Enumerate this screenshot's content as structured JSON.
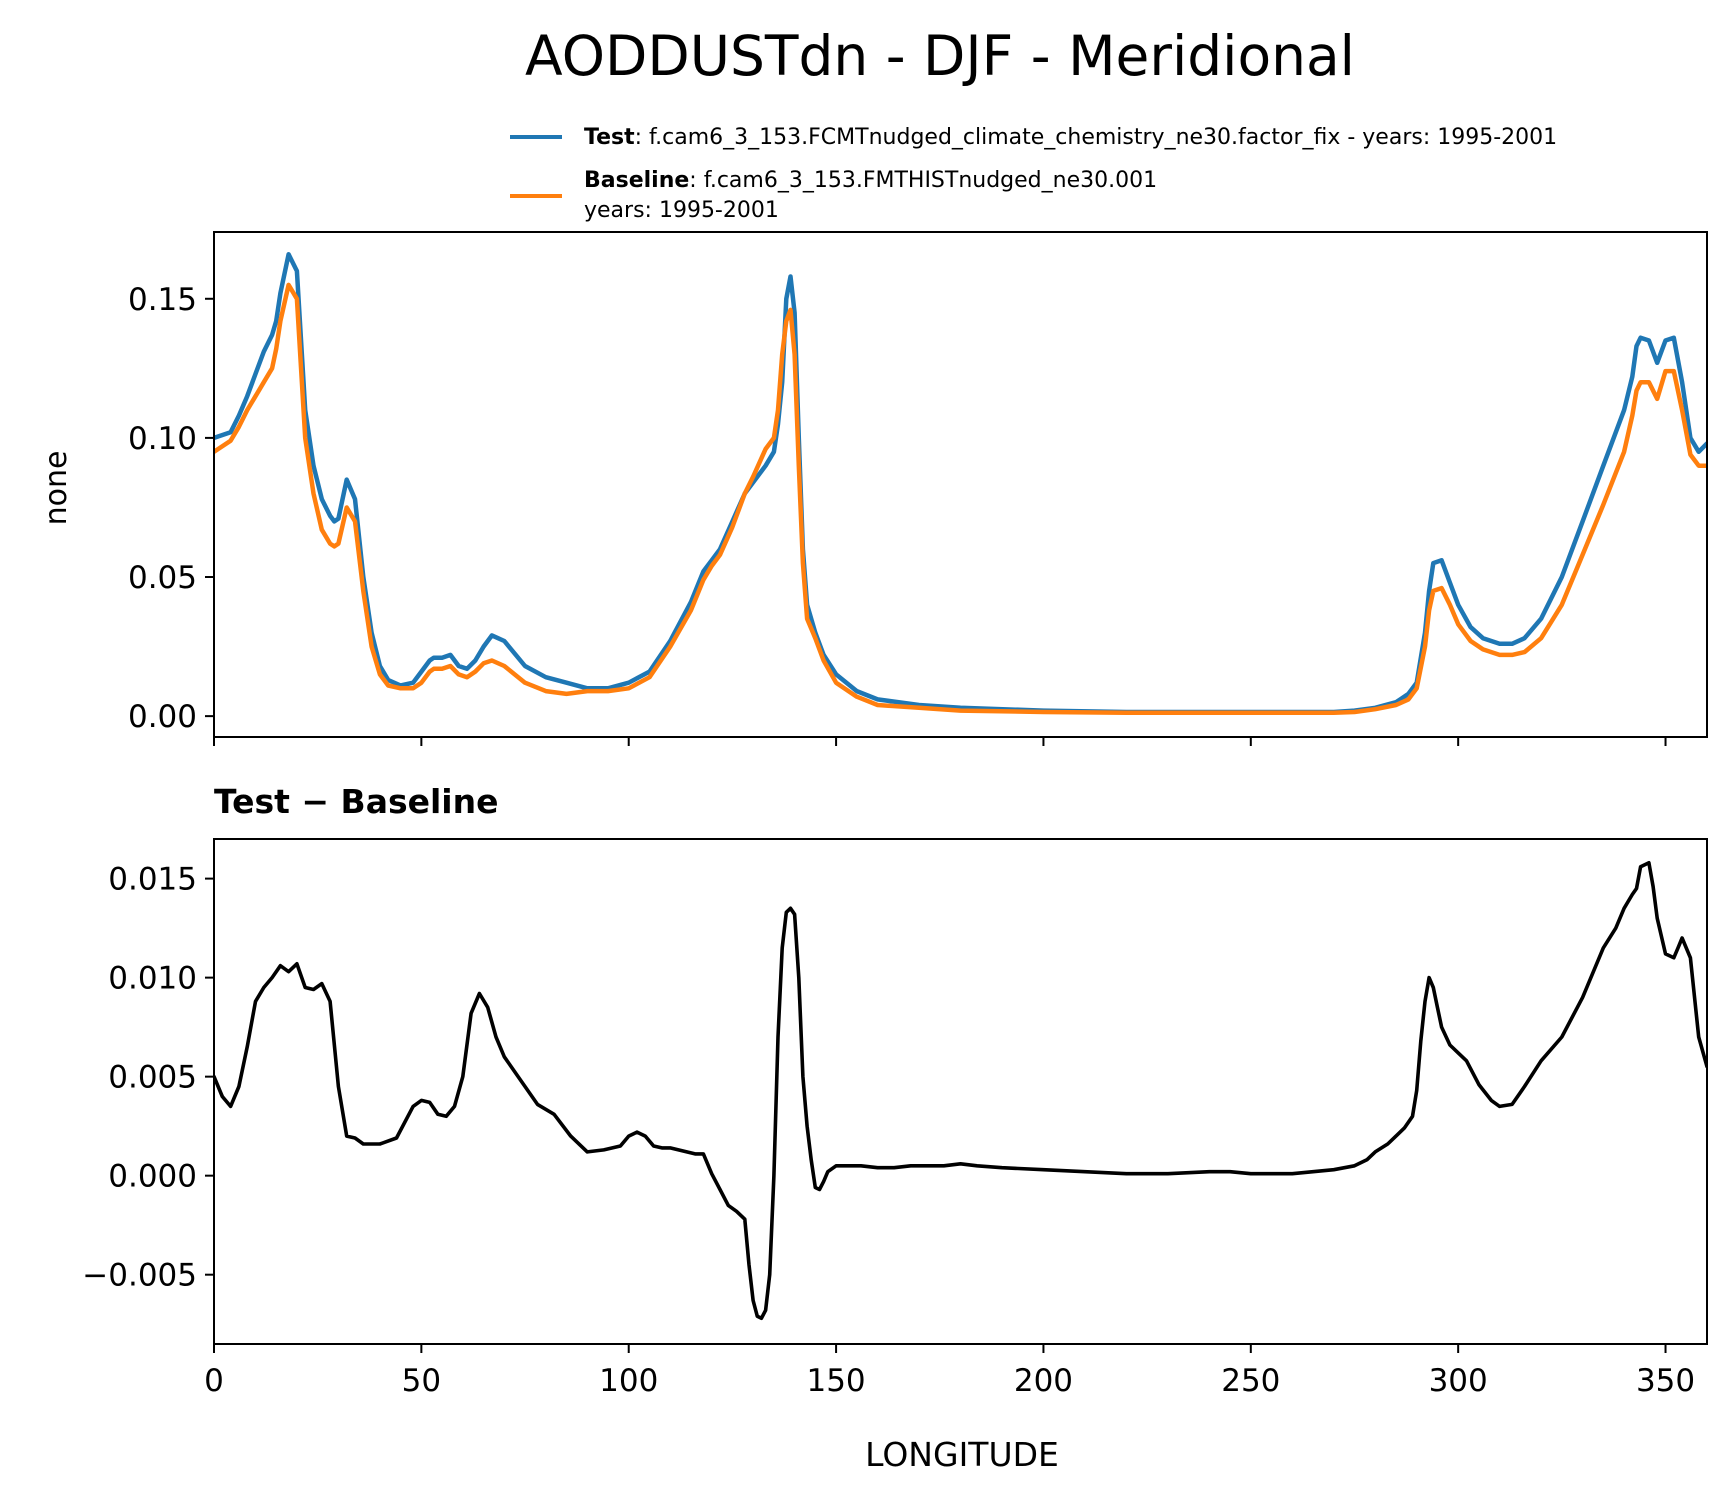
{
  "colors": {
    "test": "#1f77b4",
    "baseline": "#ff7f0e",
    "diff": "#000000",
    "axes": "#000000"
  },
  "chart_data": [
    {
      "type": "line",
      "title": "AODDUSTdn - DJF - Meridional",
      "xlabel": "",
      "ylabel": "none",
      "xlim": [
        0,
        360
      ],
      "ylim": [
        -0.0075,
        0.174
      ],
      "yticks": [
        0.0,
        0.05,
        0.1,
        0.15
      ],
      "ytick_labels": [
        "0.00",
        "0.05",
        "0.10",
        "0.15"
      ],
      "xticks": [
        0,
        50,
        100,
        150,
        200,
        250,
        300,
        350
      ],
      "legend": {
        "placement": "top-right",
        "entries": [
          {
            "bold": "Test",
            "text": ": f.cam6_3_153.FCMTnudged_climate_chemistry_ne30.factor_fix - years: 1995-2001",
            "line2": ""
          },
          {
            "bold": "Baseline",
            "text": ": f.cam6_3_153.FMTHISTnudged_ne30.001",
            "line2": "years: 1995-2001"
          }
        ]
      },
      "series": [
        {
          "name": "Test",
          "x": [
            0,
            4,
            6,
            8,
            10,
            12,
            14,
            15,
            16,
            18,
            20,
            22,
            24,
            26,
            28,
            29,
            30,
            32,
            34,
            36,
            38,
            40,
            42,
            45,
            48,
            50,
            52,
            53,
            55,
            57,
            59,
            61,
            63,
            65,
            67,
            70,
            75,
            80,
            85,
            90,
            95,
            100,
            105,
            110,
            115,
            118,
            120,
            122,
            125,
            128,
            130,
            133,
            135,
            136,
            137,
            138,
            139,
            140,
            141,
            142,
            143,
            145,
            147,
            150,
            155,
            160,
            170,
            180,
            200,
            220,
            240,
            245,
            250,
            260,
            270,
            275,
            280,
            285,
            288,
            290,
            292,
            293,
            294,
            296,
            298,
            300,
            303,
            306,
            310,
            313,
            316,
            320,
            325,
            330,
            335,
            340,
            342,
            343,
            344,
            346,
            348,
            350,
            352,
            354,
            356,
            358,
            360
          ],
          "values": [
            0.1,
            0.102,
            0.108,
            0.115,
            0.123,
            0.131,
            0.137,
            0.142,
            0.152,
            0.166,
            0.16,
            0.11,
            0.09,
            0.078,
            0.072,
            0.07,
            0.071,
            0.085,
            0.078,
            0.05,
            0.03,
            0.018,
            0.013,
            0.011,
            0.012,
            0.016,
            0.02,
            0.021,
            0.021,
            0.022,
            0.018,
            0.017,
            0.02,
            0.025,
            0.029,
            0.027,
            0.018,
            0.014,
            0.012,
            0.01,
            0.01,
            0.012,
            0.016,
            0.027,
            0.041,
            0.052,
            0.056,
            0.06,
            0.07,
            0.08,
            0.084,
            0.09,
            0.095,
            0.105,
            0.12,
            0.15,
            0.158,
            0.145,
            0.1,
            0.06,
            0.04,
            0.03,
            0.022,
            0.015,
            0.009,
            0.006,
            0.004,
            0.003,
            0.002,
            0.0015,
            0.0015,
            0.0015,
            0.0015,
            0.0015,
            0.0015,
            0.002,
            0.003,
            0.005,
            0.008,
            0.012,
            0.03,
            0.045,
            0.055,
            0.056,
            0.048,
            0.04,
            0.032,
            0.028,
            0.026,
            0.026,
            0.028,
            0.035,
            0.05,
            0.07,
            0.09,
            0.11,
            0.122,
            0.133,
            0.136,
            0.135,
            0.127,
            0.135,
            0.136,
            0.12,
            0.1,
            0.095,
            0.098
          ]
        },
        {
          "name": "Baseline",
          "x": [
            0,
            4,
            6,
            8,
            10,
            12,
            14,
            15,
            16,
            18,
            20,
            22,
            24,
            26,
            28,
            29,
            30,
            32,
            34,
            36,
            38,
            40,
            42,
            45,
            48,
            50,
            52,
            53,
            55,
            57,
            59,
            61,
            63,
            65,
            67,
            70,
            75,
            80,
            85,
            90,
            95,
            100,
            105,
            110,
            115,
            118,
            120,
            122,
            125,
            128,
            130,
            133,
            135,
            136,
            137,
            138,
            139,
            140,
            141,
            142,
            143,
            145,
            147,
            150,
            155,
            160,
            170,
            180,
            200,
            220,
            240,
            245,
            250,
            260,
            270,
            275,
            280,
            285,
            288,
            290,
            292,
            293,
            294,
            296,
            298,
            300,
            303,
            306,
            310,
            313,
            316,
            320,
            325,
            330,
            335,
            340,
            342,
            343,
            344,
            346,
            348,
            350,
            352,
            354,
            356,
            358,
            360
          ],
          "values": [
            0.095,
            0.099,
            0.104,
            0.11,
            0.115,
            0.12,
            0.125,
            0.132,
            0.142,
            0.155,
            0.15,
            0.1,
            0.08,
            0.067,
            0.062,
            0.061,
            0.062,
            0.075,
            0.07,
            0.045,
            0.025,
            0.015,
            0.011,
            0.01,
            0.01,
            0.012,
            0.016,
            0.017,
            0.017,
            0.018,
            0.015,
            0.014,
            0.016,
            0.019,
            0.02,
            0.018,
            0.012,
            0.009,
            0.008,
            0.009,
            0.009,
            0.01,
            0.014,
            0.025,
            0.038,
            0.049,
            0.054,
            0.058,
            0.068,
            0.08,
            0.086,
            0.096,
            0.1,
            0.11,
            0.13,
            0.142,
            0.146,
            0.13,
            0.09,
            0.055,
            0.035,
            0.028,
            0.02,
            0.012,
            0.007,
            0.004,
            0.003,
            0.002,
            0.0015,
            0.0012,
            0.0012,
            0.0012,
            0.0012,
            0.0012,
            0.0012,
            0.0015,
            0.0025,
            0.004,
            0.006,
            0.01,
            0.025,
            0.038,
            0.045,
            0.046,
            0.04,
            0.033,
            0.027,
            0.024,
            0.022,
            0.022,
            0.023,
            0.028,
            0.04,
            0.058,
            0.076,
            0.095,
            0.108,
            0.117,
            0.12,
            0.12,
            0.114,
            0.124,
            0.124,
            0.11,
            0.094,
            0.09,
            0.09
          ]
        }
      ]
    },
    {
      "type": "line",
      "title": "Test − Baseline",
      "xlabel": "LONGITUDE",
      "ylabel": "",
      "xlim": [
        0,
        360
      ],
      "ylim": [
        -0.0085,
        0.017
      ],
      "yticks": [
        -0.005,
        0.0,
        0.005,
        0.01,
        0.015
      ],
      "ytick_labels": [
        "−0.005",
        "0.000",
        "0.005",
        "0.010",
        "0.015"
      ],
      "xticks": [
        0,
        50,
        100,
        150,
        200,
        250,
        300,
        350
      ],
      "xtick_labels": [
        "0",
        "50",
        "100",
        "150",
        "200",
        "250",
        "300",
        "350"
      ],
      "series": [
        {
          "name": "Test − Baseline",
          "x": [
            0,
            2,
            4,
            6,
            8,
            10,
            12,
            14,
            16,
            18,
            20,
            22,
            24,
            26,
            28,
            30,
            32,
            34,
            36,
            40,
            44,
            48,
            50,
            52,
            54,
            56,
            58,
            60,
            62,
            64,
            66,
            68,
            70,
            74,
            78,
            82,
            86,
            90,
            94,
            98,
            100,
            102,
            104,
            106,
            108,
            110,
            114,
            116,
            118,
            120,
            122,
            124,
            126,
            128,
            129,
            130,
            131,
            132,
            133,
            134,
            135,
            136,
            137,
            138,
            139,
            140,
            141,
            142,
            143,
            144,
            145,
            146,
            147,
            148,
            150,
            152,
            154,
            156,
            160,
            164,
            168,
            172,
            176,
            180,
            184,
            190,
            200,
            210,
            220,
            230,
            240,
            245,
            250,
            260,
            270,
            275,
            278,
            280,
            283,
            285,
            287,
            289,
            290,
            291,
            292,
            293,
            294,
            295,
            296,
            298,
            300,
            302,
            305,
            308,
            310,
            313,
            316,
            320,
            325,
            330,
            335,
            338,
            340,
            342,
            343,
            344,
            346,
            347,
            348,
            350,
            352,
            353,
            354,
            356,
            358,
            360
          ],
          "values": [
            0.005,
            0.004,
            0.0035,
            0.0045,
            0.0065,
            0.0088,
            0.0095,
            0.01,
            0.0106,
            0.0103,
            0.0107,
            0.0095,
            0.0094,
            0.0097,
            0.0088,
            0.0045,
            0.002,
            0.0019,
            0.0016,
            0.0016,
            0.0019,
            0.0035,
            0.0038,
            0.0037,
            0.0031,
            0.003,
            0.0035,
            0.005,
            0.0082,
            0.0092,
            0.0085,
            0.007,
            0.006,
            0.0048,
            0.0036,
            0.0031,
            0.002,
            0.0012,
            0.0013,
            0.0015,
            0.002,
            0.0022,
            0.002,
            0.0015,
            0.0014,
            0.0014,
            0.0012,
            0.0011,
            0.0011,
            0.0001,
            -0.0007,
            -0.0015,
            -0.0018,
            -0.0022,
            -0.0045,
            -0.0063,
            -0.0071,
            -0.0072,
            -0.0068,
            -0.005,
            -0.0,
            0.007,
            0.0115,
            0.0133,
            0.0135,
            0.0132,
            0.01,
            0.005,
            0.0025,
            0.0008,
            -0.0006,
            -0.0007,
            -0.0003,
            0.0002,
            0.0005,
            0.0005,
            0.0005,
            0.0005,
            0.0004,
            0.0004,
            0.0005,
            0.0005,
            0.0005,
            0.0006,
            0.0005,
            0.0004,
            0.0003,
            0.0002,
            0.0001,
            0.0001,
            0.0002,
            0.0002,
            0.0001,
            0.0001,
            0.0003,
            0.0005,
            0.0008,
            0.0012,
            0.0016,
            0.002,
            0.0024,
            0.003,
            0.0043,
            0.0068,
            0.0088,
            0.01,
            0.0095,
            0.0085,
            0.0075,
            0.0066,
            0.0062,
            0.0058,
            0.0046,
            0.0038,
            0.0035,
            0.0036,
            0.0045,
            0.0058,
            0.007,
            0.009,
            0.0115,
            0.0125,
            0.0135,
            0.0142,
            0.0145,
            0.0156,
            0.0158,
            0.0146,
            0.013,
            0.0112,
            0.011,
            0.0115,
            0.012,
            0.011,
            0.007,
            0.0055
          ]
        }
      ]
    }
  ]
}
